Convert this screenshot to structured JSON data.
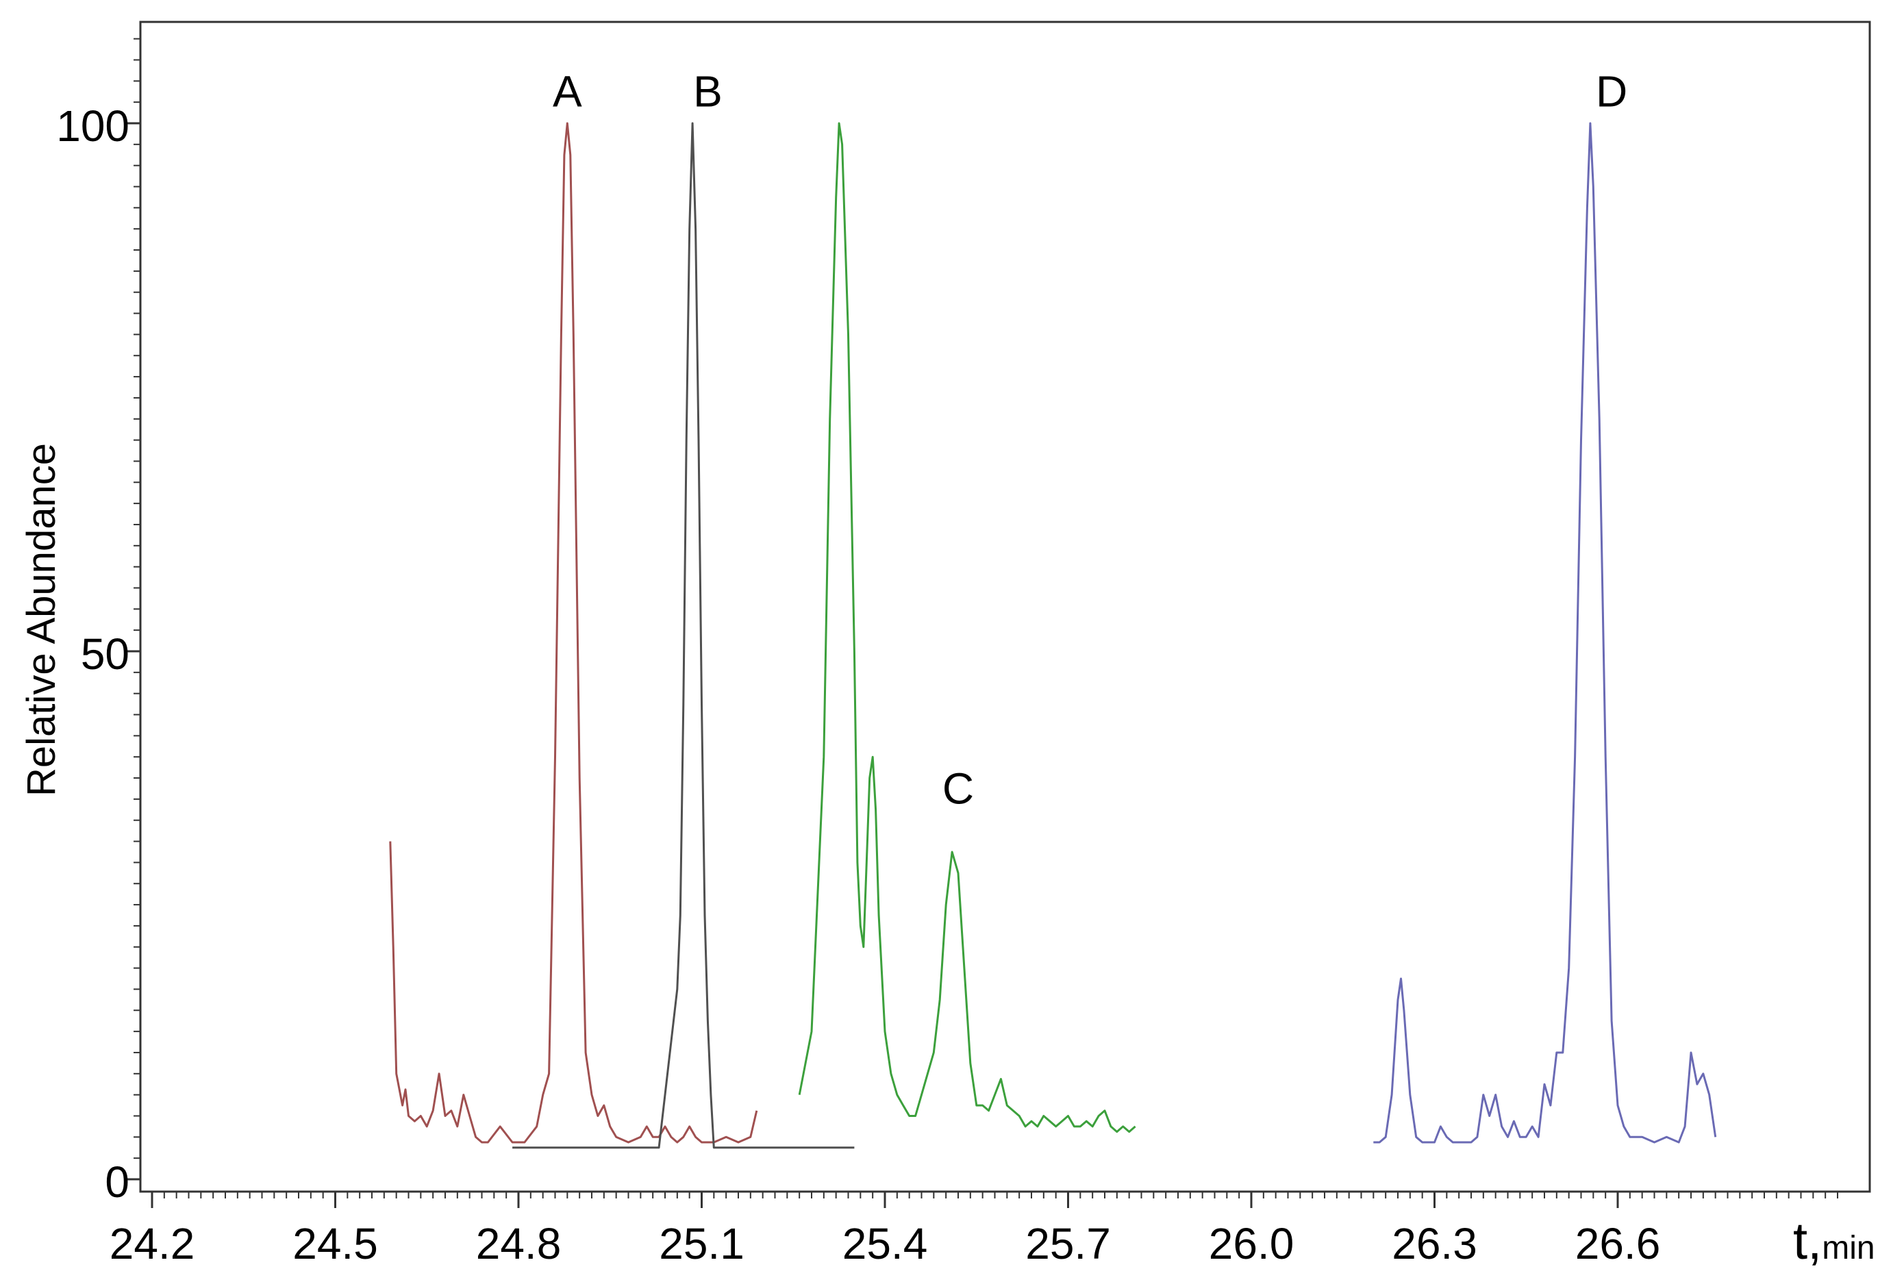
{
  "chart_data": {
    "type": "line",
    "title": "",
    "xlabel": "t,",
    "xlabel_sub": "min",
    "ylabel": "Relative Abundance",
    "xlim": [
      24.03,
      26.96
    ],
    "ylim": [
      -1,
      109
    ],
    "grid": false,
    "x_ticks": [
      "24.2",
      "24.5",
      "24.8",
      "25.1",
      "25.4",
      "25.7",
      "26.0",
      "26.3",
      "26.6"
    ],
    "y_ticks": [
      "0",
      "50",
      "100"
    ],
    "colors": {
      "A": "#a05050",
      "B": "#505050",
      "C": "#3ca03c",
      "D": "#6a6ab4"
    },
    "series": [
      {
        "name": "A",
        "label_at": [
          24.88,
          103
        ],
        "points": [
          [
            24.59,
            32
          ],
          [
            24.595,
            22
          ],
          [
            24.6,
            10
          ],
          [
            24.61,
            7
          ],
          [
            24.615,
            8.5
          ],
          [
            24.62,
            6
          ],
          [
            24.63,
            5.5
          ],
          [
            24.64,
            6
          ],
          [
            24.65,
            5
          ],
          [
            24.66,
            6.5
          ],
          [
            24.67,
            10
          ],
          [
            24.68,
            6
          ],
          [
            24.69,
            6.5
          ],
          [
            24.7,
            5
          ],
          [
            24.71,
            8
          ],
          [
            24.72,
            6
          ],
          [
            24.73,
            4
          ],
          [
            24.74,
            3.5
          ],
          [
            24.75,
            3.5
          ],
          [
            24.77,
            5
          ],
          [
            24.79,
            3.5
          ],
          [
            24.81,
            3.5
          ],
          [
            24.83,
            5
          ],
          [
            24.84,
            8
          ],
          [
            24.85,
            10
          ],
          [
            24.86,
            40
          ],
          [
            24.87,
            80
          ],
          [
            24.875,
            97
          ],
          [
            24.88,
            100
          ],
          [
            24.885,
            97
          ],
          [
            24.89,
            80
          ],
          [
            24.9,
            38
          ],
          [
            24.91,
            12
          ],
          [
            24.92,
            8
          ],
          [
            24.93,
            6
          ],
          [
            24.94,
            7
          ],
          [
            24.95,
            5
          ],
          [
            24.96,
            4
          ],
          [
            24.98,
            3.5
          ],
          [
            25.0,
            4
          ],
          [
            25.01,
            5
          ],
          [
            25.02,
            4
          ],
          [
            25.03,
            4
          ],
          [
            25.04,
            5
          ],
          [
            25.05,
            4
          ],
          [
            25.06,
            3.5
          ],
          [
            25.07,
            4
          ],
          [
            25.08,
            5
          ],
          [
            25.09,
            4
          ],
          [
            25.1,
            3.5
          ],
          [
            25.12,
            3.5
          ],
          [
            25.14,
            4
          ],
          [
            25.16,
            3.5
          ],
          [
            25.18,
            4
          ],
          [
            25.19,
            6.5
          ]
        ]
      },
      {
        "name": "B",
        "label_at": [
          25.11,
          103
        ],
        "points": [
          [
            24.79,
            3
          ],
          [
            24.9,
            3
          ],
          [
            25.0,
            3
          ],
          [
            25.03,
            3
          ],
          [
            25.04,
            8
          ],
          [
            25.05,
            13
          ],
          [
            25.06,
            18
          ],
          [
            25.065,
            25
          ],
          [
            25.07,
            45
          ],
          [
            25.075,
            70
          ],
          [
            25.08,
            90
          ],
          [
            25.085,
            100
          ],
          [
            25.09,
            90
          ],
          [
            25.095,
            70
          ],
          [
            25.1,
            45
          ],
          [
            25.105,
            25
          ],
          [
            25.11,
            15
          ],
          [
            25.115,
            8
          ],
          [
            25.12,
            3
          ],
          [
            25.2,
            3
          ],
          [
            25.3,
            3
          ],
          [
            25.35,
            3
          ]
        ]
      },
      {
        "name": "C",
        "label_at": [
          25.52,
          37
        ],
        "points": [
          [
            25.26,
            8
          ],
          [
            25.28,
            14
          ],
          [
            25.3,
            40
          ],
          [
            25.31,
            72
          ],
          [
            25.32,
            93
          ],
          [
            25.325,
            100
          ],
          [
            25.33,
            98
          ],
          [
            25.34,
            80
          ],
          [
            25.35,
            50
          ],
          [
            25.355,
            30
          ],
          [
            25.36,
            24
          ],
          [
            25.365,
            22
          ],
          [
            25.37,
            30
          ],
          [
            25.375,
            38
          ],
          [
            25.38,
            40
          ],
          [
            25.385,
            35
          ],
          [
            25.39,
            25
          ],
          [
            25.4,
            14
          ],
          [
            25.41,
            10
          ],
          [
            25.42,
            8
          ],
          [
            25.43,
            7
          ],
          [
            25.44,
            6
          ],
          [
            25.45,
            6
          ],
          [
            25.47,
            10
          ],
          [
            25.48,
            12
          ],
          [
            25.49,
            17
          ],
          [
            25.5,
            26
          ],
          [
            25.51,
            31
          ],
          [
            25.52,
            29
          ],
          [
            25.53,
            20
          ],
          [
            25.54,
            11
          ],
          [
            25.55,
            7
          ],
          [
            25.56,
            7
          ],
          [
            25.57,
            6.5
          ],
          [
            25.58,
            8
          ],
          [
            25.59,
            9.5
          ],
          [
            25.6,
            7
          ],
          [
            25.61,
            6.5
          ],
          [
            25.62,
            6
          ],
          [
            25.63,
            5
          ],
          [
            25.64,
            5.5
          ],
          [
            25.65,
            5
          ],
          [
            25.66,
            6
          ],
          [
            25.67,
            5.5
          ],
          [
            25.68,
            5
          ],
          [
            25.69,
            5.5
          ],
          [
            25.7,
            6
          ],
          [
            25.71,
            5
          ],
          [
            25.72,
            5
          ],
          [
            25.73,
            5.5
          ],
          [
            25.74,
            5
          ],
          [
            25.75,
            6
          ],
          [
            25.76,
            6.5
          ],
          [
            25.77,
            5
          ],
          [
            25.78,
            4.5
          ],
          [
            25.79,
            5
          ],
          [
            25.8,
            4.5
          ],
          [
            25.81,
            5
          ]
        ]
      },
      {
        "name": "D",
        "label_at": [
          26.59,
          103
        ],
        "points": [
          [
            26.2,
            3.5
          ],
          [
            26.21,
            3.5
          ],
          [
            26.22,
            4
          ],
          [
            26.23,
            8
          ],
          [
            26.24,
            17
          ],
          [
            26.245,
            19
          ],
          [
            26.25,
            16
          ],
          [
            26.26,
            8
          ],
          [
            26.27,
            4
          ],
          [
            26.28,
            3.5
          ],
          [
            26.29,
            3.5
          ],
          [
            26.3,
            3.5
          ],
          [
            26.31,
            5
          ],
          [
            26.32,
            4
          ],
          [
            26.33,
            3.5
          ],
          [
            26.34,
            3.5
          ],
          [
            26.35,
            3.5
          ],
          [
            26.36,
            3.5
          ],
          [
            26.37,
            4
          ],
          [
            26.38,
            8
          ],
          [
            26.39,
            6
          ],
          [
            26.4,
            8
          ],
          [
            26.41,
            5
          ],
          [
            26.42,
            4
          ],
          [
            26.43,
            5.5
          ],
          [
            26.44,
            4
          ],
          [
            26.45,
            4
          ],
          [
            26.46,
            5
          ],
          [
            26.47,
            4
          ],
          [
            26.48,
            9
          ],
          [
            26.49,
            7
          ],
          [
            26.5,
            12
          ],
          [
            26.51,
            12
          ],
          [
            26.52,
            20
          ],
          [
            26.53,
            40
          ],
          [
            26.54,
            70
          ],
          [
            26.55,
            92
          ],
          [
            26.555,
            100
          ],
          [
            26.56,
            94
          ],
          [
            26.57,
            72
          ],
          [
            26.58,
            40
          ],
          [
            26.59,
            15
          ],
          [
            26.6,
            7
          ],
          [
            26.61,
            5
          ],
          [
            26.62,
            4
          ],
          [
            26.64,
            4
          ],
          [
            26.66,
            3.5
          ],
          [
            26.68,
            4
          ],
          [
            26.7,
            3.5
          ],
          [
            26.71,
            5
          ],
          [
            26.72,
            12
          ],
          [
            26.73,
            9
          ],
          [
            26.74,
            10
          ],
          [
            26.75,
            8
          ],
          [
            26.76,
            4
          ]
        ]
      }
    ]
  }
}
